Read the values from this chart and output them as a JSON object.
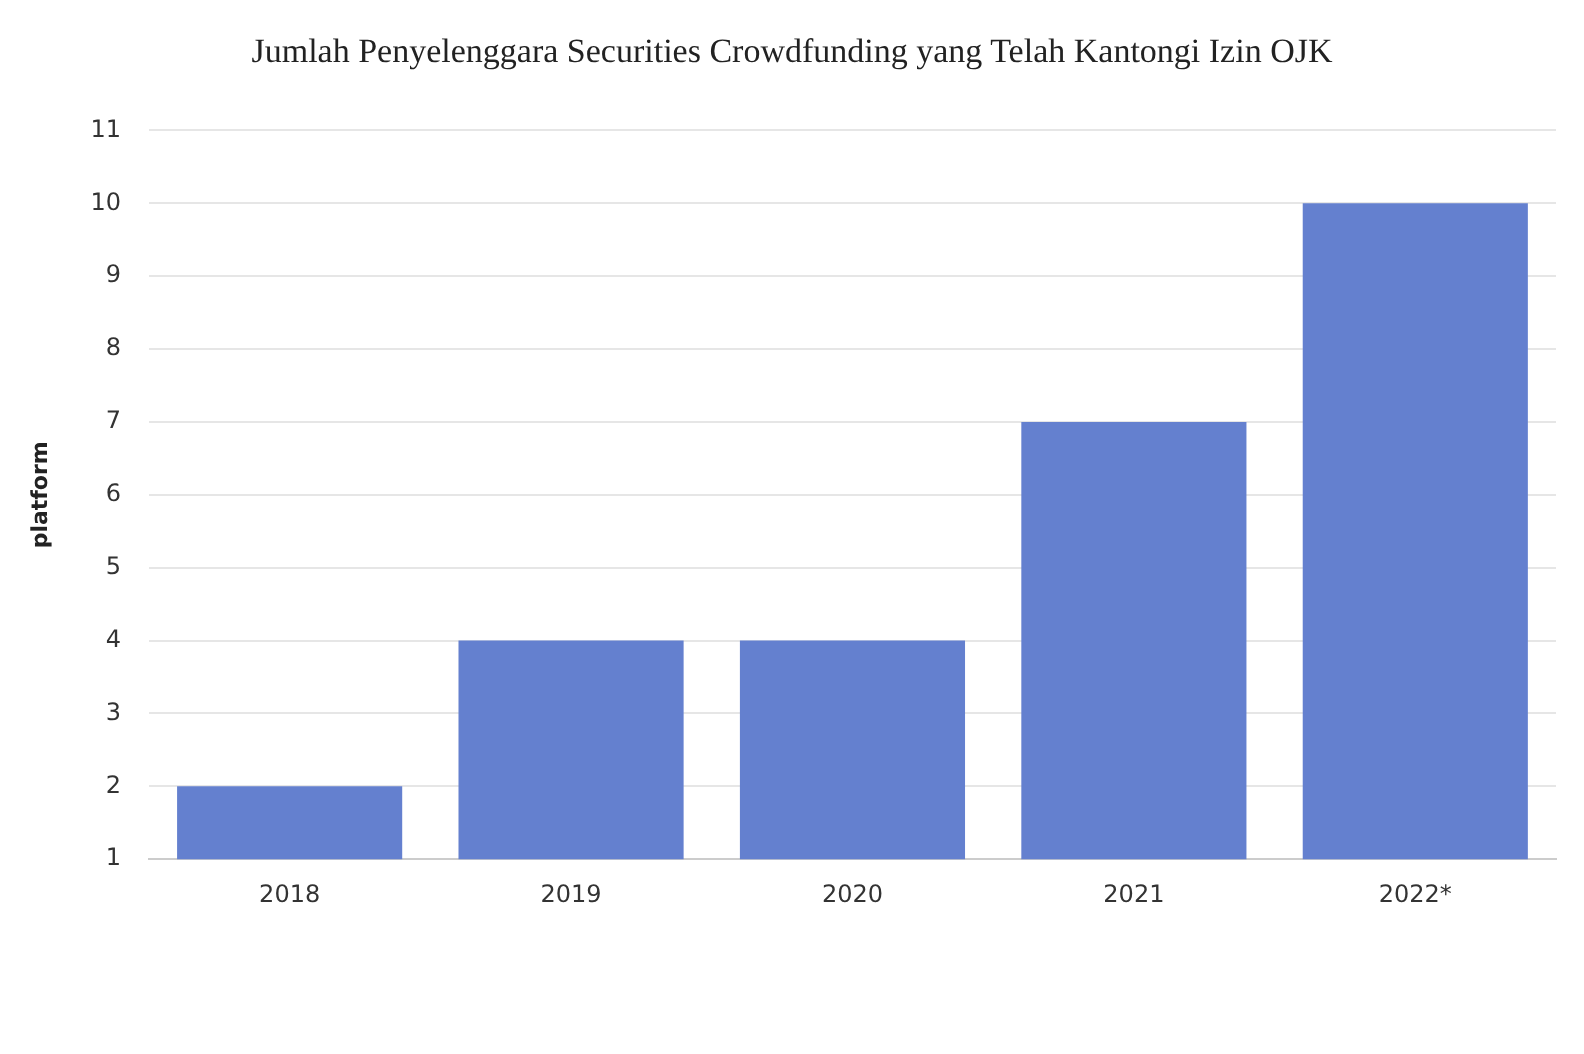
{
  "chart_data": {
    "type": "bar",
    "title": "Jumlah Penyelenggara Securities Crowdfunding yang Telah Kantongi Izin OJK",
    "ylabel": "platform",
    "categories": [
      "2018",
      "2019",
      "2020",
      "2021",
      "2022*"
    ],
    "values": [
      2,
      4,
      4,
      7,
      10
    ],
    "color": "#6480cf",
    "ylim": [
      1,
      11
    ],
    "yticks": [
      1,
      2,
      3,
      4,
      5,
      6,
      7,
      8,
      9,
      10,
      11
    ],
    "grid": "y",
    "legend": false
  }
}
